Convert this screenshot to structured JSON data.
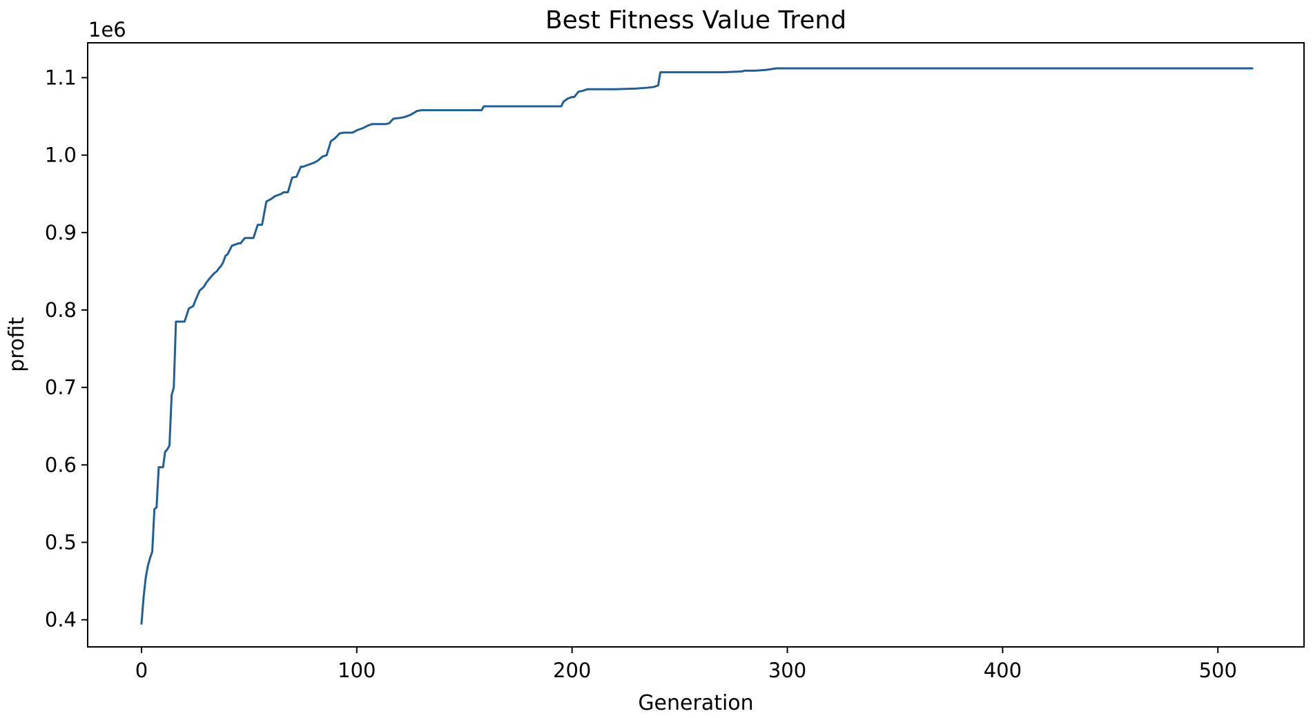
{
  "chart_data": {
    "type": "line",
    "title": "Best Fitness Value Trend",
    "xlabel": "Generation",
    "ylabel": "profit",
    "y_offset_label": "1e6",
    "xlim": [
      -25,
      540
    ],
    "ylim": [
      0.365,
      1.145
    ],
    "x_ticks": [
      0,
      100,
      200,
      300,
      400,
      500
    ],
    "x_tick_labels": [
      "0",
      "100",
      "200",
      "300",
      "400",
      "500"
    ],
    "y_ticks": [
      0.4,
      0.5,
      0.6,
      0.7,
      0.8,
      0.9,
      1.0,
      1.1
    ],
    "y_tick_labels": [
      "0.4",
      "0.5",
      "0.6",
      "0.7",
      "0.8",
      "0.9",
      "1.0",
      "1.1"
    ],
    "grid": false,
    "legend": "none",
    "colors": {
      "line": "#1f5f97",
      "axes": "#000000"
    },
    "series": [
      {
        "x": [
          0,
          1,
          2,
          3,
          4,
          5,
          6,
          7,
          8,
          9,
          10,
          11,
          12,
          13,
          14,
          15,
          16,
          17,
          18,
          20,
          22,
          24,
          25,
          27,
          29,
          30,
          32,
          34,
          35,
          36,
          37,
          38,
          39,
          40,
          42,
          44,
          45,
          46,
          48,
          49,
          50,
          51,
          52,
          54,
          56,
          58,
          60,
          62,
          63,
          65,
          66,
          68,
          70,
          72,
          74,
          75,
          76,
          78,
          80,
          82,
          84,
          85,
          86,
          88,
          90,
          92,
          94,
          96,
          98,
          100,
          103,
          105,
          107,
          110,
          113,
          115,
          117,
          120,
          122,
          125,
          128,
          130,
          132,
          135,
          140,
          150,
          158,
          159,
          165,
          175,
          185,
          195,
          196,
          198,
          200,
          201,
          203,
          205,
          207,
          210,
          220,
          230,
          235,
          238,
          240,
          241,
          245,
          250,
          260,
          270,
          279,
          280,
          285,
          290,
          295,
          296,
          300,
          350,
          400,
          450,
          500,
          516
        ],
        "values": [
          0.395,
          0.43,
          0.455,
          0.47,
          0.48,
          0.488,
          0.543,
          0.545,
          0.597,
          0.597,
          0.597,
          0.617,
          0.62,
          0.625,
          0.69,
          0.7,
          0.785,
          0.785,
          0.785,
          0.785,
          0.802,
          0.805,
          0.812,
          0.825,
          0.83,
          0.835,
          0.842,
          0.848,
          0.85,
          0.854,
          0.857,
          0.862,
          0.87,
          0.872,
          0.883,
          0.885,
          0.886,
          0.886,
          0.893,
          0.893,
          0.893,
          0.893,
          0.893,
          0.91,
          0.91,
          0.94,
          0.943,
          0.947,
          0.948,
          0.95,
          0.952,
          0.952,
          0.971,
          0.972,
          0.985,
          0.985,
          0.986,
          0.988,
          0.99,
          0.993,
          0.998,
          0.999,
          1.0,
          1.018,
          1.022,
          1.028,
          1.029,
          1.029,
          1.029,
          1.032,
          1.035,
          1.038,
          1.04,
          1.04,
          1.04,
          1.041,
          1.047,
          1.048,
          1.049,
          1.052,
          1.057,
          1.058,
          1.058,
          1.058,
          1.058,
          1.058,
          1.058,
          1.063,
          1.063,
          1.063,
          1.063,
          1.063,
          1.069,
          1.073,
          1.075,
          1.075,
          1.082,
          1.083,
          1.085,
          1.085,
          1.085,
          1.086,
          1.087,
          1.088,
          1.09,
          1.107,
          1.107,
          1.107,
          1.107,
          1.107,
          1.108,
          1.109,
          1.109,
          1.11,
          1.112,
          1.112,
          1.112,
          1.112,
          1.112,
          1.112,
          1.112,
          1.112
        ]
      }
    ]
  }
}
